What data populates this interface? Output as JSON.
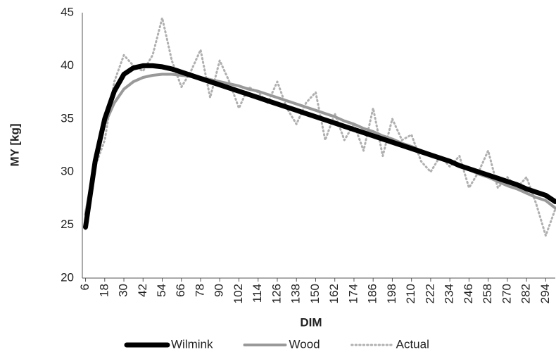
{
  "chart_data": {
    "type": "line",
    "x_label": "DIM",
    "y_label": "MY [kg]",
    "x": [
      6,
      12,
      18,
      24,
      30,
      36,
      42,
      48,
      54,
      60,
      66,
      72,
      78,
      84,
      90,
      96,
      102,
      108,
      114,
      120,
      126,
      132,
      138,
      144,
      150,
      156,
      162,
      168,
      174,
      180,
      186,
      192,
      198,
      204,
      210,
      216,
      222,
      228,
      234,
      240,
      246,
      252,
      258,
      264,
      270,
      276,
      282,
      288,
      294,
      300
    ],
    "series": [
      {
        "name": "Wilmink",
        "color": "#000000",
        "width": 7,
        "dash": "solid",
        "values": [
          24.8,
          31.0,
          35.0,
          37.6,
          39.2,
          39.8,
          40.0,
          40.0,
          39.9,
          39.7,
          39.4,
          39.1,
          38.8,
          38.5,
          38.2,
          37.9,
          37.6,
          37.3,
          37.0,
          36.7,
          36.4,
          36.1,
          35.8,
          35.5,
          35.2,
          34.9,
          34.6,
          34.3,
          34.0,
          33.7,
          33.4,
          33.1,
          32.8,
          32.5,
          32.2,
          31.9,
          31.6,
          31.3,
          31.0,
          30.6,
          30.3,
          30.0,
          29.7,
          29.4,
          29.1,
          28.8,
          28.4,
          28.1,
          27.8,
          27.2
        ]
      },
      {
        "name": "Wood",
        "color": "#999999",
        "width": 4,
        "dash": "solid",
        "values": [
          26.0,
          31.0,
          34.5,
          36.5,
          37.8,
          38.5,
          38.9,
          39.1,
          39.2,
          39.2,
          39.1,
          39.0,
          38.9,
          38.7,
          38.5,
          38.3,
          38.1,
          37.8,
          37.6,
          37.3,
          37.0,
          36.7,
          36.4,
          36.1,
          35.8,
          35.5,
          35.2,
          34.8,
          34.5,
          34.1,
          33.8,
          33.4,
          33.1,
          32.7,
          32.4,
          32.0,
          31.6,
          31.3,
          30.9,
          30.5,
          30.2,
          29.8,
          29.5,
          29.1,
          28.7,
          28.4,
          28.0,
          27.6,
          27.3,
          26.6
        ]
      },
      {
        "name": "Actual",
        "color": "#b0b0b0",
        "width": 3,
        "dash": "dotted",
        "values": [
          24.6,
          30.5,
          33.0,
          38.5,
          41.0,
          40.0,
          39.5,
          41.0,
          44.5,
          40.5,
          38.0,
          39.5,
          41.5,
          37.0,
          40.5,
          38.5,
          36.0,
          38.0,
          37.5,
          36.5,
          38.5,
          36.0,
          34.5,
          36.5,
          37.5,
          33.0,
          35.5,
          33.0,
          34.5,
          32.0,
          36.0,
          31.5,
          35.0,
          33.0,
          33.5,
          31.0,
          30.0,
          31.5,
          30.5,
          31.5,
          28.5,
          30.0,
          32.0,
          28.5,
          29.5,
          28.5,
          29.5,
          27.0,
          24.0,
          26.5
        ]
      }
    ],
    "xlim": [
      4,
      300
    ],
    "xticks": [
      6,
      18,
      30,
      42,
      54,
      66,
      78,
      90,
      102,
      114,
      126,
      138,
      150,
      162,
      174,
      186,
      198,
      210,
      222,
      234,
      246,
      258,
      270,
      282,
      294
    ],
    "ylim": [
      20,
      45
    ],
    "yticks": [
      20,
      25,
      30,
      35,
      40,
      45
    ],
    "grid": false,
    "legend": "bottom"
  }
}
